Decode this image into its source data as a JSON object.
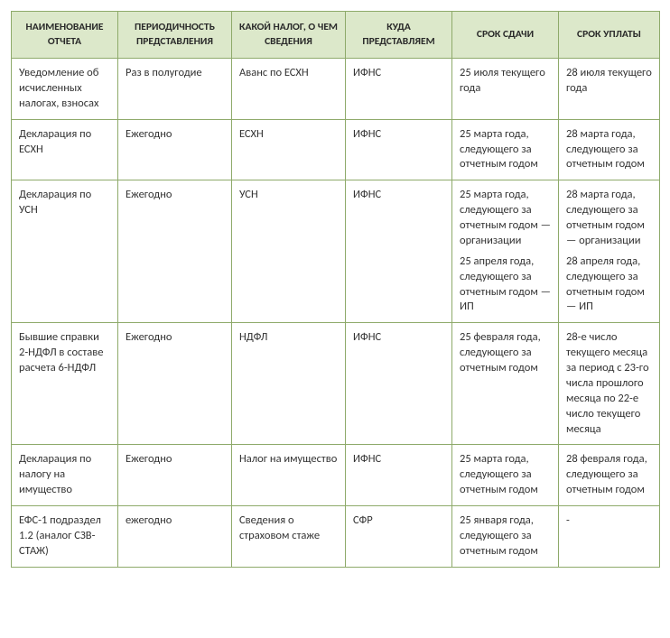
{
  "table": {
    "header_bg": "#dce8ca",
    "border_color": "#8eaa6a",
    "text_color": "#333333",
    "header_fontsize": 11.5,
    "cell_fontsize": 12.5,
    "columns": [
      "НАИМЕНОВАНИЕ ОТЧЕТА",
      "ПЕРИОДИЧНОСТЬ ПРЕДСТАВЛЕНИЯ",
      "КАКОЙ НАЛОГ, О ЧЕМ СВЕДЕНИЯ",
      "КУДА ПРЕДСТАВЛЯЕМ",
      "СРОК СДАЧИ",
      "СРОК УПЛАТЫ"
    ],
    "rows": [
      {
        "name": "Уведомление об исчисленных налогах, взносах",
        "period": "Раз в полугодие",
        "tax": "Аванс по ЕСХН",
        "where": "ИФНС",
        "deadline": [
          "25 июля текущего года"
        ],
        "payment": [
          "28 июля текущего года"
        ]
      },
      {
        "name": "Декларация по ЕСХН",
        "period": "Ежегодно",
        "tax": "ЕСХН",
        "where": "ИФНС",
        "deadline": [
          "25 марта года, следующего за отчетным годом"
        ],
        "payment": [
          "28 марта года, следующего за отчетным годом"
        ]
      },
      {
        "name": "Декларация по УСН",
        "period": "Ежегодно",
        "tax": "УСН",
        "where": "ИФНС",
        "deadline": [
          "25 марта года, следующего за отчетным годом — организации",
          "25 апреля года, следующего за отчетным годом — ИП"
        ],
        "payment": [
          "28 марта года, следующего за отчетным годом — организации",
          "28 апреля года, следующего за отчетным годом — ИП"
        ]
      },
      {
        "name": "Бывшие справки 2-НДФЛ в составе расчета 6-НДФЛ",
        "period": "Ежегодно",
        "tax": "НДФЛ",
        "where": "ИФНС",
        "deadline": [
          "25 февраля года, следующего за отчетным годом"
        ],
        "payment": [
          "28-е число текущего месяца за период с 23-го числа прошлого месяца по 22-е число текущего месяца"
        ]
      },
      {
        "name": "Декларация по налогу на имущество",
        "period": "Ежегодно",
        "tax": "Налог на имущество",
        "where": "ИФНС",
        "deadline": [
          "25 марта года, следующего за отчетным годом"
        ],
        "payment": [
          "28 февраля года, следующего за отчетным годом"
        ]
      },
      {
        "name": "ЕФС-1 подраздел 1.2 (аналог СЗВ-СТАЖ)",
        "period": "ежегодно",
        "tax": "Сведения о страховом стаже",
        "where": "СФР",
        "deadline": [
          "25 января года, следующего за отчетным годом"
        ],
        "payment": [
          "-"
        ]
      }
    ]
  }
}
